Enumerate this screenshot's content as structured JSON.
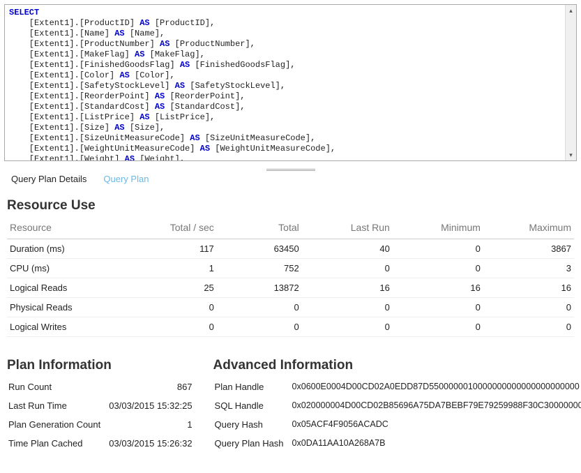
{
  "sql": {
    "select_kw": "SELECT",
    "as_kw": "AS",
    "entity": "Extent1",
    "columns": [
      {
        "col": "ProductID",
        "alias": "ProductID",
        "trailing": ","
      },
      {
        "col": "Name",
        "alias": "Name",
        "trailing": ","
      },
      {
        "col": "ProductNumber",
        "alias": "ProductNumber",
        "trailing": ","
      },
      {
        "col": "MakeFlag",
        "alias": "MakeFlag",
        "trailing": ","
      },
      {
        "col": "FinishedGoodsFlag",
        "alias": "FinishedGoodsFlag",
        "trailing": ","
      },
      {
        "col": "Color",
        "alias": "Color",
        "trailing": ","
      },
      {
        "col": "SafetyStockLevel",
        "alias": "SafetyStockLevel",
        "trailing": ","
      },
      {
        "col": "ReorderPoint",
        "alias": "ReorderPoint",
        "trailing": ","
      },
      {
        "col": "StandardCost",
        "alias": "StandardCost",
        "trailing": ","
      },
      {
        "col": "ListPrice",
        "alias": "ListPrice",
        "trailing": ","
      },
      {
        "col": "Size",
        "alias": "Size",
        "trailing": ","
      },
      {
        "col": "SizeUnitMeasureCode",
        "alias": "SizeUnitMeasureCode",
        "trailing": ","
      },
      {
        "col": "WeightUnitMeasureCode",
        "alias": "WeightUnitMeasureCode",
        "trailing": ","
      },
      {
        "col": "Weight",
        "alias": "Weight",
        "trailing": ","
      }
    ]
  },
  "tabs": {
    "active": "Query Plan Details",
    "inactive": "Query Plan"
  },
  "resource_use": {
    "title": "Resource Use",
    "headers": [
      "Resource",
      "Total / sec",
      "Total",
      "Last Run",
      "Minimum",
      "Maximum"
    ],
    "rows": [
      {
        "name": "Duration (ms)",
        "total_per_sec": "117",
        "total": "63450",
        "last_run": "40",
        "min": "0",
        "max": "3867"
      },
      {
        "name": "CPU (ms)",
        "total_per_sec": "1",
        "total": "752",
        "last_run": "0",
        "min": "0",
        "max": "3"
      },
      {
        "name": "Logical Reads",
        "total_per_sec": "25",
        "total": "13872",
        "last_run": "16",
        "min": "16",
        "max": "16"
      },
      {
        "name": "Physical Reads",
        "total_per_sec": "0",
        "total": "0",
        "last_run": "0",
        "min": "0",
        "max": "0"
      },
      {
        "name": "Logical Writes",
        "total_per_sec": "0",
        "total": "0",
        "last_run": "0",
        "min": "0",
        "max": "0"
      }
    ]
  },
  "plan_info": {
    "title": "Plan Information",
    "rows": [
      {
        "label": "Run Count",
        "value": "867"
      },
      {
        "label": "Last Run Time",
        "value": "03/03/2015 15:32:25"
      },
      {
        "label": "Plan Generation Count",
        "value": "1"
      },
      {
        "label": "Time Plan Cached",
        "value": "03/03/2015 15:26:32"
      }
    ]
  },
  "advanced_info": {
    "title": "Advanced Information",
    "rows": [
      {
        "label": "Plan Handle",
        "value": "0x0600E0004D00CD02A0EDD87D5500000010000000000000000000000"
      },
      {
        "label": "SQL Handle",
        "value": "0x020000004D00CD02B85696A75DA7BEBF79E79259988F30C3000000000"
      },
      {
        "label": "Query Hash",
        "value": "0x05ACF4F9056ACADC"
      },
      {
        "label": "Query Plan Hash",
        "value": "0x0DA11AA10A268A7B"
      }
    ]
  },
  "colors": {
    "keyword": "#0000cc",
    "link_inactive": "#6bb8e6",
    "header_text": "#777777",
    "border": "#eeeeee"
  }
}
